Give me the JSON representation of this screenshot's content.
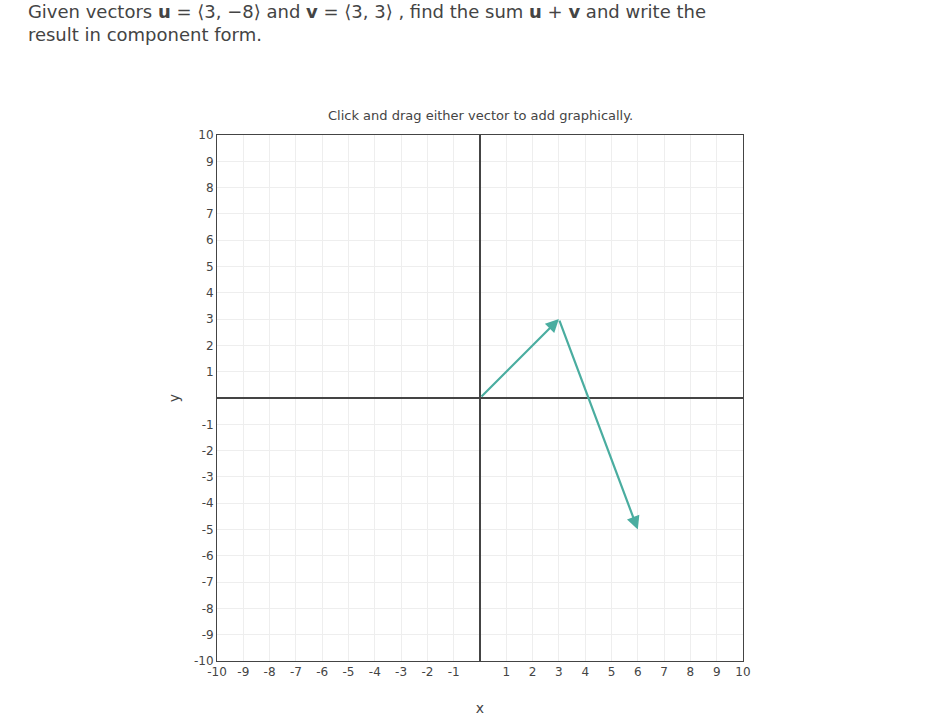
{
  "chart_data": {
    "type": "vector",
    "title": "Given vectors u = ⟨3, −8⟩ and v = ⟨3, 3⟩ , find the sum u + v and write the\nresult in component form.",
    "subtitle": "Click and drag either vector to add graphically.",
    "xlabel": "x",
    "ylabel": "y",
    "xlim": [
      -10,
      10
    ],
    "ylim": [
      -10,
      10
    ],
    "xticks": [
      -10,
      -9,
      -8,
      -7,
      -6,
      -5,
      -4,
      -3,
      -2,
      -1,
      1,
      2,
      3,
      4,
      5,
      6,
      7,
      8,
      9,
      10
    ],
    "yticks": [
      -10,
      -9,
      -8,
      -7,
      -6,
      -5,
      -4,
      -3,
      -2,
      -1,
      1,
      2,
      3,
      4,
      5,
      6,
      7,
      8,
      9,
      10
    ],
    "grid": true,
    "color": "#4aada0",
    "vectors": [
      {
        "start": [
          0,
          0
        ],
        "end": [
          3,
          3
        ]
      },
      {
        "start": [
          3,
          3
        ],
        "end": [
          6,
          -5
        ]
      }
    ]
  }
}
